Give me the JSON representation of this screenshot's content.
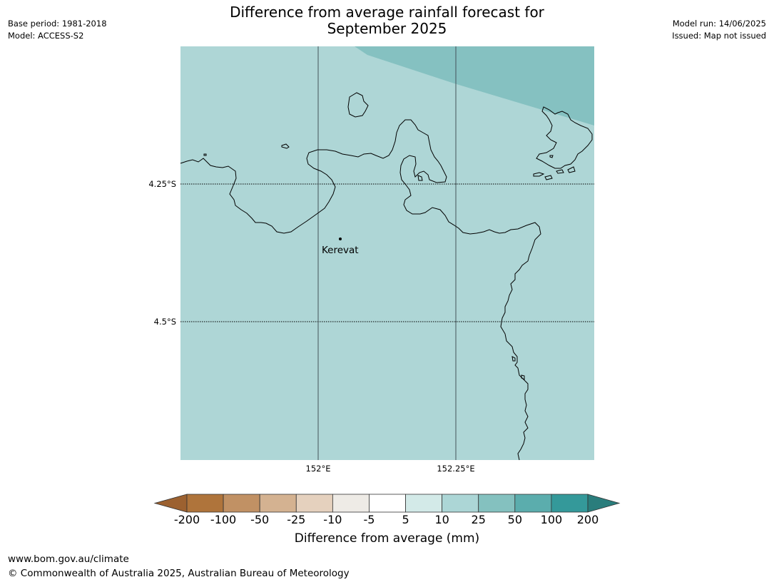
{
  "title": {
    "line1": "Difference from average rainfall forecast for",
    "line2": "September 2025"
  },
  "meta": {
    "base_period": "Base period: 1981-2018",
    "model": "Model: ACCESS-S2",
    "model_run": "Model run: 14/06/2025",
    "issued": "Issued: Map not issued"
  },
  "map": {
    "lat_ticks": [
      "4.25°S",
      "4.5°S"
    ],
    "lon_ticks": [
      "152°E",
      "152.25°E"
    ],
    "place": "Kerevat",
    "fill_colors": {
      "land_sea_10_25": "#aed6d6",
      "wetter_25_50": "#85c1c1",
      "coast": "#000000",
      "grid": "#44545a"
    }
  },
  "colorbar": {
    "tick_labels": [
      "-200",
      "-100",
      "-50",
      "-25",
      "-10",
      "-5",
      "5",
      "10",
      "25",
      "50",
      "100",
      "200"
    ],
    "colors": [
      "#9c6130",
      "#af743b",
      "#c19164",
      "#d4b291",
      "#e5d1be",
      "#eeebe6",
      "#ffffff",
      "#d3eae8",
      "#acd6d6",
      "#84c1bf",
      "#5badad",
      "#34999a",
      "#2a7d7c"
    ],
    "title": "Difference from average (mm)"
  },
  "footer": {
    "url": "www.bom.gov.au/climate",
    "copyright": "© Commonwealth of Australia 2025, Australian Bureau of Meteorology"
  }
}
